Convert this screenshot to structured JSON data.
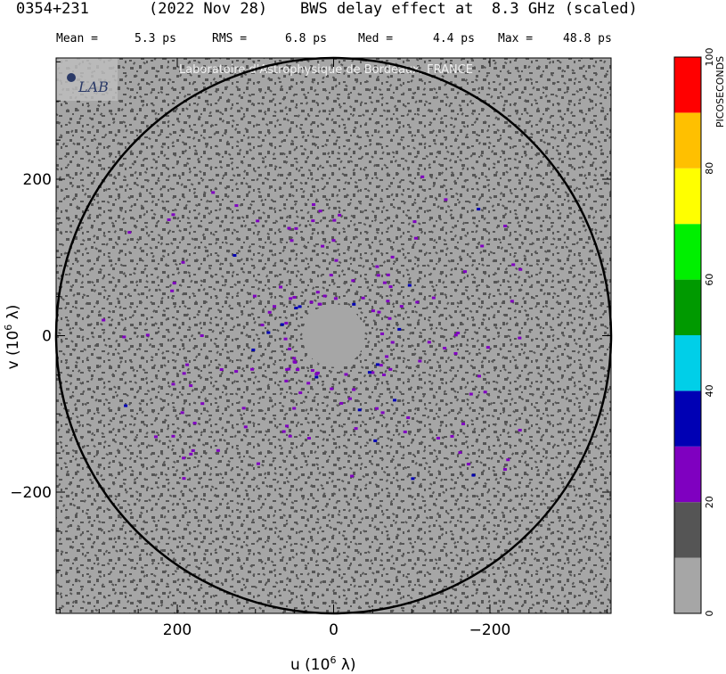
{
  "header": {
    "source": "0354+231",
    "date": "(2022 Nov 28)",
    "description": "BWS delay effect at  8.3 GHz (scaled)"
  },
  "stats": {
    "mean_label": "Mean =",
    "mean_value": "5.3 ps",
    "rms_label": "RMS =",
    "rms_value": "6.8 ps",
    "med_label": "Med =",
    "med_value": "4.4 ps",
    "max_label": "Max =",
    "max_value": "48.8 ps"
  },
  "watermark": {
    "text": "Laboratoire d'Astrophysique de Bordeaux, FRANCE",
    "logo": "LAB"
  },
  "chart_data": {
    "type": "heatmap",
    "xlabel": "u  (10^6 λ)",
    "ylabel": "v  (10^6 λ)",
    "xlim": [
      355,
      -355
    ],
    "ylim": [
      -355,
      355
    ],
    "xticks": [
      200,
      0,
      -200
    ],
    "xtick_labels": [
      "200",
      "0",
      "−200"
    ],
    "yticks": [
      200,
      0,
      -200
    ],
    "ytick_labels": [
      "200",
      "0",
      "−200"
    ],
    "circle_radius": 355,
    "background_color": "#a6a6a6",
    "colorbar": {
      "label": "PICOSECONDS",
      "range": [
        0,
        100
      ],
      "tick_values": [
        0,
        20,
        40,
        60,
        80,
        100
      ],
      "tick_labels": [
        "0",
        "20",
        "40",
        "60",
        "80",
        "100"
      ],
      "bins": [
        {
          "from": 0,
          "to": 10,
          "color": "#a6a6a6"
        },
        {
          "from": 10,
          "to": 20,
          "color": "#555555"
        },
        {
          "from": 20,
          "to": 30,
          "color": "#7f00c0"
        },
        {
          "from": 30,
          "to": 40,
          "color": "#0000b4"
        },
        {
          "from": 40,
          "to": 50,
          "color": "#00cfe8"
        },
        {
          "from": 50,
          "to": 60,
          "color": "#009a00"
        },
        {
          "from": 60,
          "to": 70,
          "color": "#00f000"
        },
        {
          "from": 70,
          "to": 80,
          "color": "#ffff00"
        },
        {
          "from": 80,
          "to": 90,
          "color": "#ffc000"
        },
        {
          "from": 90,
          "to": 100,
          "color": "#ff0000"
        }
      ]
    },
    "pattern": {
      "dominant_range_ps": [
        0,
        10
      ],
      "secondary_range_ps": [
        10,
        20
      ],
      "sparse_range_ps": [
        20,
        40
      ],
      "empty_center_radius": 40
    }
  }
}
